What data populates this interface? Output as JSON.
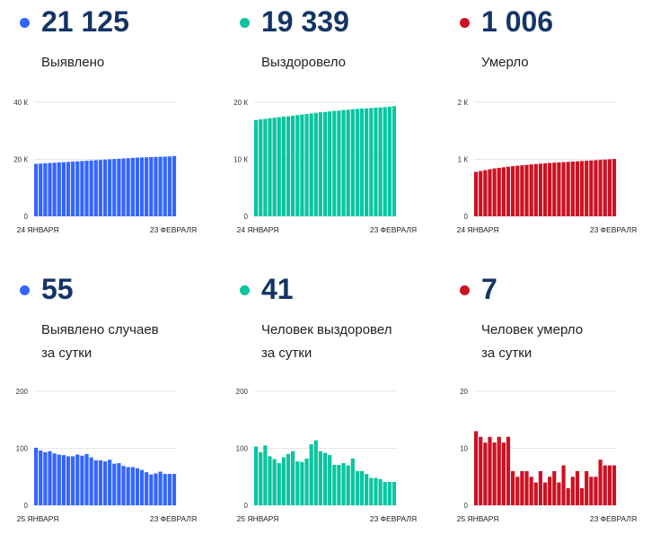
{
  "panels": [
    {
      "value": "21 125",
      "label_lines": [
        "Выявлено"
      ],
      "color": "#3366ff",
      "chart_data": {
        "type": "bar",
        "series_color": "#3366ff",
        "ylim": [
          0,
          40000
        ],
        "y_ticks": [
          {
            "value": 0,
            "label": "0"
          },
          {
            "value": 20000,
            "label": "20 К"
          },
          {
            "value": 40000,
            "label": "40 К"
          }
        ],
        "x_labels": [
          "24 ЯНВАРЯ",
          "23 ФЕВРАЛЯ"
        ],
        "values": [
          18400,
          18500,
          18600,
          18700,
          18800,
          18900,
          19000,
          19100,
          19200,
          19300,
          19400,
          19500,
          19600,
          19700,
          19800,
          19900,
          20000,
          20100,
          20200,
          20300,
          20400,
          20500,
          20600,
          20650,
          20700,
          20800,
          20850,
          20900,
          20950,
          21000,
          21125
        ]
      }
    },
    {
      "value": "19 339",
      "label_lines": [
        "Выздоровело"
      ],
      "color": "#0ac5a0",
      "chart_data": {
        "type": "bar",
        "series_color": "#0ac5a0",
        "ylim": [
          0,
          20000
        ],
        "y_ticks": [
          {
            "value": 0,
            "label": "0"
          },
          {
            "value": 10000,
            "label": "10 К"
          },
          {
            "value": 20000,
            "label": "20 К"
          }
        ],
        "x_labels": [
          "24 ЯНВАРЯ",
          "23 ФЕВРАЛЯ"
        ],
        "values": [
          16900,
          17000,
          17100,
          17200,
          17300,
          17400,
          17500,
          17550,
          17650,
          17750,
          17850,
          17950,
          18050,
          18150,
          18250,
          18300,
          18400,
          18500,
          18550,
          18650,
          18700,
          18800,
          18850,
          18900,
          18950,
          19000,
          19050,
          19100,
          19150,
          19250,
          19339
        ]
      }
    },
    {
      "value": "1 006",
      "label_lines": [
        "Умерло"
      ],
      "color": "#cc1122",
      "chart_data": {
        "type": "bar",
        "series_color": "#cc1122",
        "ylim": [
          0,
          2000
        ],
        "y_ticks": [
          {
            "value": 0,
            "label": "0"
          },
          {
            "value": 1000,
            "label": "1 К"
          },
          {
            "value": 2000,
            "label": "2 К"
          }
        ],
        "x_labels": [
          "24 ЯНВАРЯ",
          "23 ФЕВРАЛЯ"
        ],
        "values": [
          780,
          795,
          810,
          825,
          840,
          850,
          860,
          870,
          880,
          888,
          895,
          902,
          910,
          917,
          924,
          930,
          936,
          941,
          946,
          950,
          955,
          960,
          965,
          970,
          975,
          980,
          985,
          990,
          995,
          1000,
          1006
        ]
      }
    },
    {
      "value": "55",
      "label_lines": [
        "Выявлено случаев",
        "за сутки"
      ],
      "color": "#3366ff",
      "chart_data": {
        "type": "bar",
        "series_color": "#3366ff",
        "ylim": [
          0,
          200
        ],
        "y_ticks": [
          {
            "value": 0,
            "label": "0"
          },
          {
            "value": 100,
            "label": "100"
          },
          {
            "value": 200,
            "label": "200"
          }
        ],
        "x_labels": [
          "25 ЯНВАРЯ",
          "23 ФЕВРАЛЯ"
        ],
        "values": [
          101,
          96,
          93,
          95,
          91,
          89,
          88,
          86,
          86,
          89,
          87,
          90,
          84,
          79,
          79,
          77,
          80,
          73,
          74,
          69,
          67,
          67,
          65,
          62,
          58,
          54,
          56,
          59,
          55,
          55,
          55
        ]
      }
    },
    {
      "value": "41",
      "label_lines": [
        "Человек выздоровел",
        "за сутки"
      ],
      "color": "#0ac5a0",
      "chart_data": {
        "type": "bar",
        "series_color": "#0ac5a0",
        "ylim": [
          0,
          200
        ],
        "y_ticks": [
          {
            "value": 0,
            "label": "0"
          },
          {
            "value": 100,
            "label": "100"
          },
          {
            "value": 200,
            "label": "200"
          }
        ],
        "x_labels": [
          "25 ЯНВАРЯ",
          "23 ФЕВРАЛЯ"
        ],
        "values": [
          103,
          93,
          105,
          86,
          81,
          74,
          84,
          90,
          95,
          77,
          76,
          82,
          107,
          114,
          95,
          92,
          88,
          71,
          71,
          74,
          70,
          82,
          60,
          60,
          55,
          48,
          48,
          46,
          41,
          41,
          41
        ]
      }
    },
    {
      "value": "7",
      "label_lines": [
        "Человек умерло",
        "за сутки"
      ],
      "color": "#cc1122",
      "chart_data": {
        "type": "bar",
        "series_color": "#cc1122",
        "ylim": [
          0,
          20
        ],
        "y_ticks": [
          {
            "value": 0,
            "label": "0"
          },
          {
            "value": 10,
            "label": "10"
          },
          {
            "value": 20,
            "label": "20"
          }
        ],
        "x_labels": [
          "25 ЯНВАРЯ",
          "23 ФЕВРАЛЯ"
        ],
        "values": [
          13,
          12,
          11,
          12,
          11,
          12,
          11,
          12,
          6,
          5,
          6,
          6,
          5,
          4,
          6,
          4,
          5,
          6,
          4,
          7,
          3,
          5,
          6,
          3,
          6,
          5,
          5,
          8,
          7,
          7,
          7
        ]
      }
    }
  ]
}
